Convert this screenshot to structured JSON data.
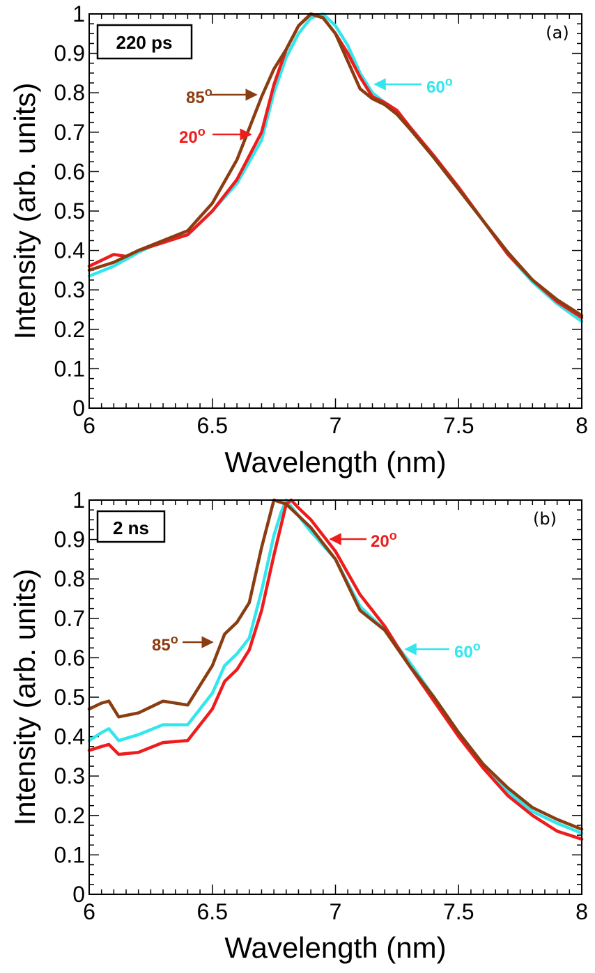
{
  "chart_data": [
    {
      "type": "line",
      "panel_label": "(a)",
      "box_label": "220 ps",
      "xlabel": "Wavelength (nm)",
      "ylabel": "Intensity (arb. units)",
      "xlim": [
        6,
        8
      ],
      "ylim": [
        0,
        1
      ],
      "xticks": [
        "6",
        "6.5",
        "7",
        "7.5",
        "8"
      ],
      "yticks": [
        "0",
        "0.1",
        "0.2",
        "0.3",
        "0.4",
        "0.5",
        "0.6",
        "0.7",
        "0.8",
        "0.9",
        "1"
      ],
      "grid": false,
      "series": [
        {
          "name": "60°",
          "color": "#33e6ee",
          "points": [
            [
              6.0,
              0.335
            ],
            [
              6.1,
              0.36
            ],
            [
              6.2,
              0.395
            ],
            [
              6.3,
              0.425
            ],
            [
              6.4,
              0.44
            ],
            [
              6.5,
              0.5
            ],
            [
              6.6,
              0.57
            ],
            [
              6.7,
              0.68
            ],
            [
              6.75,
              0.8
            ],
            [
              6.8,
              0.89
            ],
            [
              6.85,
              0.95
            ],
            [
              6.9,
              0.99
            ],
            [
              6.95,
              1.0
            ],
            [
              7.0,
              0.97
            ],
            [
              7.05,
              0.92
            ],
            [
              7.1,
              0.85
            ],
            [
              7.15,
              0.8
            ],
            [
              7.2,
              0.775
            ],
            [
              7.25,
              0.755
            ],
            [
              7.3,
              0.715
            ],
            [
              7.4,
              0.635
            ],
            [
              7.5,
              0.555
            ],
            [
              7.6,
              0.475
            ],
            [
              7.7,
              0.39
            ],
            [
              7.8,
              0.32
            ],
            [
              7.9,
              0.265
            ],
            [
              8.0,
              0.22
            ]
          ]
        },
        {
          "name": "20°",
          "color": "#ee1c1c",
          "points": [
            [
              6.0,
              0.36
            ],
            [
              6.05,
              0.375
            ],
            [
              6.1,
              0.39
            ],
            [
              6.15,
              0.385
            ],
            [
              6.2,
              0.4
            ],
            [
              6.3,
              0.42
            ],
            [
              6.4,
              0.44
            ],
            [
              6.5,
              0.5
            ],
            [
              6.6,
              0.58
            ],
            [
              6.7,
              0.7
            ],
            [
              6.75,
              0.82
            ],
            [
              6.8,
              0.91
            ],
            [
              6.85,
              0.97
            ],
            [
              6.9,
              1.0
            ],
            [
              6.95,
              0.99
            ],
            [
              7.0,
              0.95
            ],
            [
              7.05,
              0.9
            ],
            [
              7.1,
              0.84
            ],
            [
              7.15,
              0.79
            ],
            [
              7.2,
              0.775
            ],
            [
              7.25,
              0.755
            ],
            [
              7.3,
              0.715
            ],
            [
              7.4,
              0.64
            ],
            [
              7.5,
              0.56
            ],
            [
              7.6,
              0.475
            ],
            [
              7.7,
              0.39
            ],
            [
              7.8,
              0.325
            ],
            [
              7.9,
              0.27
            ],
            [
              8.0,
              0.23
            ]
          ]
        },
        {
          "name": "85°",
          "color": "#8b3d12",
          "points": [
            [
              6.0,
              0.35
            ],
            [
              6.1,
              0.37
            ],
            [
              6.2,
              0.4
            ],
            [
              6.3,
              0.425
            ],
            [
              6.4,
              0.45
            ],
            [
              6.5,
              0.52
            ],
            [
              6.6,
              0.63
            ],
            [
              6.7,
              0.79
            ],
            [
              6.75,
              0.86
            ],
            [
              6.8,
              0.91
            ],
            [
              6.85,
              0.97
            ],
            [
              6.9,
              1.0
            ],
            [
              6.95,
              0.99
            ],
            [
              7.0,
              0.95
            ],
            [
              7.05,
              0.88
            ],
            [
              7.1,
              0.81
            ],
            [
              7.15,
              0.785
            ],
            [
              7.2,
              0.77
            ],
            [
              7.25,
              0.745
            ],
            [
              7.3,
              0.71
            ],
            [
              7.4,
              0.635
            ],
            [
              7.5,
              0.555
            ],
            [
              7.6,
              0.475
            ],
            [
              7.7,
              0.395
            ],
            [
              7.8,
              0.325
            ],
            [
              7.9,
              0.275
            ],
            [
              8.0,
              0.235
            ]
          ]
        }
      ],
      "annotations": [
        {
          "text": "85",
          "sup": "o",
          "color": "#8b3d12"
        },
        {
          "text": "20",
          "sup": "o",
          "color": "#ee1c1c"
        },
        {
          "text": "60",
          "sup": "o",
          "color": "#33e6ee"
        }
      ]
    },
    {
      "type": "line",
      "panel_label": "(b)",
      "box_label": "2 ns",
      "xlabel": "Wavelength (nm)",
      "ylabel": "Intensity (arb. units)",
      "xlim": [
        6,
        8
      ],
      "ylim": [
        0,
        1
      ],
      "xticks": [
        "6",
        "6.5",
        "7",
        "7.5",
        "8"
      ],
      "yticks": [
        "0",
        "0.1",
        "0.2",
        "0.3",
        "0.4",
        "0.5",
        "0.6",
        "0.7",
        "0.8",
        "0.9",
        "1"
      ],
      "grid": false,
      "series": [
        {
          "name": "60°",
          "color": "#33e6ee",
          "points": [
            [
              6.0,
              0.39
            ],
            [
              6.05,
              0.41
            ],
            [
              6.08,
              0.42
            ],
            [
              6.12,
              0.39
            ],
            [
              6.2,
              0.405
            ],
            [
              6.3,
              0.43
            ],
            [
              6.4,
              0.43
            ],
            [
              6.5,
              0.51
            ],
            [
              6.55,
              0.58
            ],
            [
              6.6,
              0.61
            ],
            [
              6.65,
              0.65
            ],
            [
              6.7,
              0.77
            ],
            [
              6.75,
              0.91
            ],
            [
              6.78,
              0.97
            ],
            [
              6.8,
              1.0
            ],
            [
              6.85,
              0.96
            ],
            [
              6.9,
              0.92
            ],
            [
              7.0,
              0.85
            ],
            [
              7.1,
              0.73
            ],
            [
              7.2,
              0.67
            ],
            [
              7.3,
              0.59
            ],
            [
              7.4,
              0.5
            ],
            [
              7.5,
              0.41
            ],
            [
              7.6,
              0.33
            ],
            [
              7.7,
              0.26
            ],
            [
              7.8,
              0.21
            ],
            [
              7.9,
              0.18
            ],
            [
              8.0,
              0.155
            ]
          ]
        },
        {
          "name": "20°",
          "color": "#ee1c1c",
          "points": [
            [
              6.0,
              0.365
            ],
            [
              6.05,
              0.375
            ],
            [
              6.08,
              0.38
            ],
            [
              6.12,
              0.355
            ],
            [
              6.2,
              0.36
            ],
            [
              6.3,
              0.385
            ],
            [
              6.4,
              0.39
            ],
            [
              6.5,
              0.47
            ],
            [
              6.55,
              0.54
            ],
            [
              6.6,
              0.57
            ],
            [
              6.65,
              0.62
            ],
            [
              6.7,
              0.72
            ],
            [
              6.75,
              0.86
            ],
            [
              6.8,
              0.99
            ],
            [
              6.82,
              1.0
            ],
            [
              6.85,
              0.98
            ],
            [
              6.9,
              0.95
            ],
            [
              7.0,
              0.87
            ],
            [
              7.1,
              0.76
            ],
            [
              7.2,
              0.68
            ],
            [
              7.3,
              0.58
            ],
            [
              7.4,
              0.49
            ],
            [
              7.5,
              0.4
            ],
            [
              7.6,
              0.32
            ],
            [
              7.7,
              0.25
            ],
            [
              7.8,
              0.2
            ],
            [
              7.9,
              0.16
            ],
            [
              8.0,
              0.14
            ]
          ]
        },
        {
          "name": "85°",
          "color": "#8b3d12",
          "points": [
            [
              6.0,
              0.47
            ],
            [
              6.05,
              0.485
            ],
            [
              6.08,
              0.49
            ],
            [
              6.12,
              0.45
            ],
            [
              6.2,
              0.46
            ],
            [
              6.3,
              0.49
            ],
            [
              6.4,
              0.48
            ],
            [
              6.5,
              0.58
            ],
            [
              6.55,
              0.66
            ],
            [
              6.6,
              0.69
            ],
            [
              6.65,
              0.74
            ],
            [
              6.7,
              0.88
            ],
            [
              6.75,
              1.0
            ],
            [
              6.8,
              0.99
            ],
            [
              6.85,
              0.96
            ],
            [
              6.9,
              0.93
            ],
            [
              7.0,
              0.85
            ],
            [
              7.1,
              0.72
            ],
            [
              7.2,
              0.67
            ],
            [
              7.3,
              0.58
            ],
            [
              7.4,
              0.5
            ],
            [
              7.5,
              0.41
            ],
            [
              7.6,
              0.33
            ],
            [
              7.7,
              0.27
            ],
            [
              7.8,
              0.22
            ],
            [
              7.9,
              0.19
            ],
            [
              8.0,
              0.165
            ]
          ]
        }
      ],
      "annotations": [
        {
          "text": "20",
          "sup": "o",
          "color": "#ee1c1c"
        },
        {
          "text": "85",
          "sup": "o",
          "color": "#8b3d12"
        },
        {
          "text": "60",
          "sup": "o",
          "color": "#33e6ee"
        }
      ]
    }
  ]
}
